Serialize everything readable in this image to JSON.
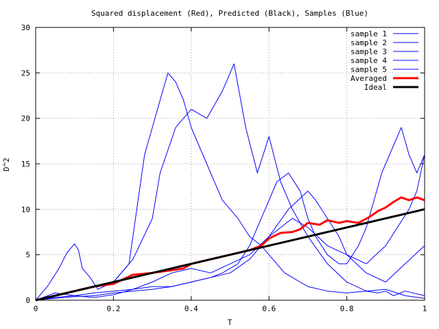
{
  "chart_data": {
    "type": "line",
    "title": "Squared displacement (Red), Predicted (Black), Samples (Blue)",
    "xlabel": "T",
    "ylabel": "D^2",
    "xlim": [
      0,
      1
    ],
    "ylim": [
      0,
      30
    ],
    "xticks": [
      0,
      0.2,
      0.4,
      0.6,
      0.8,
      1
    ],
    "xtick_labels": [
      "0",
      "0.2",
      "0.4",
      "0.6",
      "0.8",
      "1"
    ],
    "yticks": [
      0,
      5,
      10,
      15,
      20,
      25,
      30
    ],
    "ytick_labels": [
      "0",
      "5",
      "10",
      "15",
      "20",
      "25",
      "30"
    ],
    "grid": true,
    "legend_position": "top-right",
    "colors": {
      "sample": "#0000ff",
      "averaged": "#ff0000",
      "ideal": "#000000"
    },
    "series": [
      {
        "name": "sample 1",
        "color": "#0000ff",
        "x": [
          0,
          0.03,
          0.06,
          0.08,
          0.1,
          0.11,
          0.12,
          0.14,
          0.16,
          0.2,
          0.24,
          0.26,
          0.28,
          0.3,
          0.32,
          0.34,
          0.36,
          0.38,
          0.4,
          0.42,
          0.45,
          0.48,
          0.5,
          0.52,
          0.55,
          0.58,
          0.6,
          0.62,
          0.64,
          0.66,
          0.68,
          0.7,
          0.75,
          0.8,
          0.85,
          0.9,
          0.95,
          1
        ],
        "y": [
          0,
          1.5,
          3.5,
          5.2,
          6.2,
          5.5,
          3.5,
          2.5,
          1.2,
          2,
          4,
          10,
          16,
          19,
          22,
          25,
          24,
          22,
          19,
          17,
          14,
          11,
          10,
          9,
          7,
          6,
          5,
          4,
          3,
          2.5,
          2,
          1.5,
          1,
          0.8,
          1,
          1.2,
          0.5,
          0.2
        ]
      },
      {
        "name": "sample 2",
        "color": "#0000ff",
        "x": [
          0,
          0.05,
          0.1,
          0.15,
          0.2,
          0.25,
          0.3,
          0.32,
          0.36,
          0.4,
          0.44,
          0.48,
          0.51,
          0.54,
          0.57,
          0.6,
          0.63,
          0.66,
          0.7,
          0.75,
          0.8,
          0.85,
          0.88,
          0.9,
          0.92,
          0.95,
          1
        ],
        "y": [
          0,
          0.5,
          1,
          1.5,
          2,
          4.5,
          9,
          14,
          19,
          21,
          20,
          23,
          26,
          19,
          14,
          18,
          13,
          10,
          7,
          4,
          2,
          1,
          0.8,
          1,
          0.5,
          1,
          0.5
        ]
      },
      {
        "name": "sample 3",
        "color": "#0000ff",
        "x": [
          0,
          0.05,
          0.1,
          0.15,
          0.2,
          0.25,
          0.3,
          0.35,
          0.4,
          0.45,
          0.48,
          0.52,
          0.55,
          0.58,
          0.6,
          0.62,
          0.65,
          0.68,
          0.7,
          0.72,
          0.75,
          0.78,
          0.8,
          0.83,
          0.85,
          0.87,
          0.89,
          0.92,
          0.94,
          0.96,
          0.98,
          1
        ],
        "y": [
          0,
          0.3,
          0.5,
          0.8,
          1,
          1.2,
          1.5,
          1.5,
          2,
          2.5,
          3,
          4,
          6,
          9,
          11,
          13,
          14,
          12,
          9,
          7,
          5,
          4,
          4,
          6,
          8,
          11,
          14,
          17,
          19,
          16,
          14,
          16
        ]
      },
      {
        "name": "sample 4",
        "color": "#0000ff",
        "x": [
          0,
          0.05,
          0.1,
          0.15,
          0.2,
          0.25,
          0.3,
          0.35,
          0.4,
          0.45,
          0.5,
          0.55,
          0.6,
          0.65,
          0.7,
          0.72,
          0.75,
          0.78,
          0.8,
          0.85,
          0.9,
          0.95,
          1
        ],
        "y": [
          0,
          0.8,
          0.5,
          0.3,
          0.6,
          1.2,
          2,
          3,
          3.5,
          3,
          4,
          5,
          7,
          10,
          12,
          11,
          9,
          7,
          5,
          3,
          2,
          4,
          6
        ]
      },
      {
        "name": "sample 5",
        "color": "#0000ff",
        "x": [
          0,
          0.05,
          0.1,
          0.15,
          0.2,
          0.25,
          0.3,
          0.35,
          0.4,
          0.45,
          0.5,
          0.55,
          0.6,
          0.63,
          0.66,
          0.7,
          0.75,
          0.8,
          0.85,
          0.9,
          0.93,
          0.96,
          0.98,
          1
        ],
        "y": [
          0,
          0.2,
          0.4,
          0.5,
          0.8,
          1,
          1.2,
          1.5,
          2,
          2.5,
          3,
          4.5,
          7,
          8,
          9,
          8,
          6,
          5,
          4,
          6,
          8,
          10,
          12,
          16
        ]
      },
      {
        "name": "Averaged",
        "color": "#ff0000",
        "x": [
          0,
          0.05,
          0.1,
          0.15,
          0.2,
          0.25,
          0.3,
          0.35,
          0.38,
          0.4,
          0.45,
          0.5,
          0.55,
          0.58,
          0.6,
          0.63,
          0.66,
          0.68,
          0.7,
          0.73,
          0.75,
          0.78,
          0.8,
          0.83,
          0.86,
          0.88,
          0.9,
          0.92,
          0.94,
          0.96,
          0.98,
          1
        ],
        "y": [
          0,
          0.5,
          1,
          1.5,
          1.8,
          2.8,
          3,
          3.3,
          3.5,
          4,
          4.5,
          5,
          5.5,
          6,
          6.8,
          7.4,
          7.5,
          7.8,
          8.5,
          8.3,
          8.8,
          8.5,
          8.7,
          8.5,
          9.2,
          9.8,
          10.2,
          10.8,
          11.3,
          11,
          11.3,
          11
        ]
      },
      {
        "name": "Ideal",
        "color": "#000000",
        "x": [
          0,
          1
        ],
        "y": [
          0,
          10
        ]
      }
    ]
  }
}
